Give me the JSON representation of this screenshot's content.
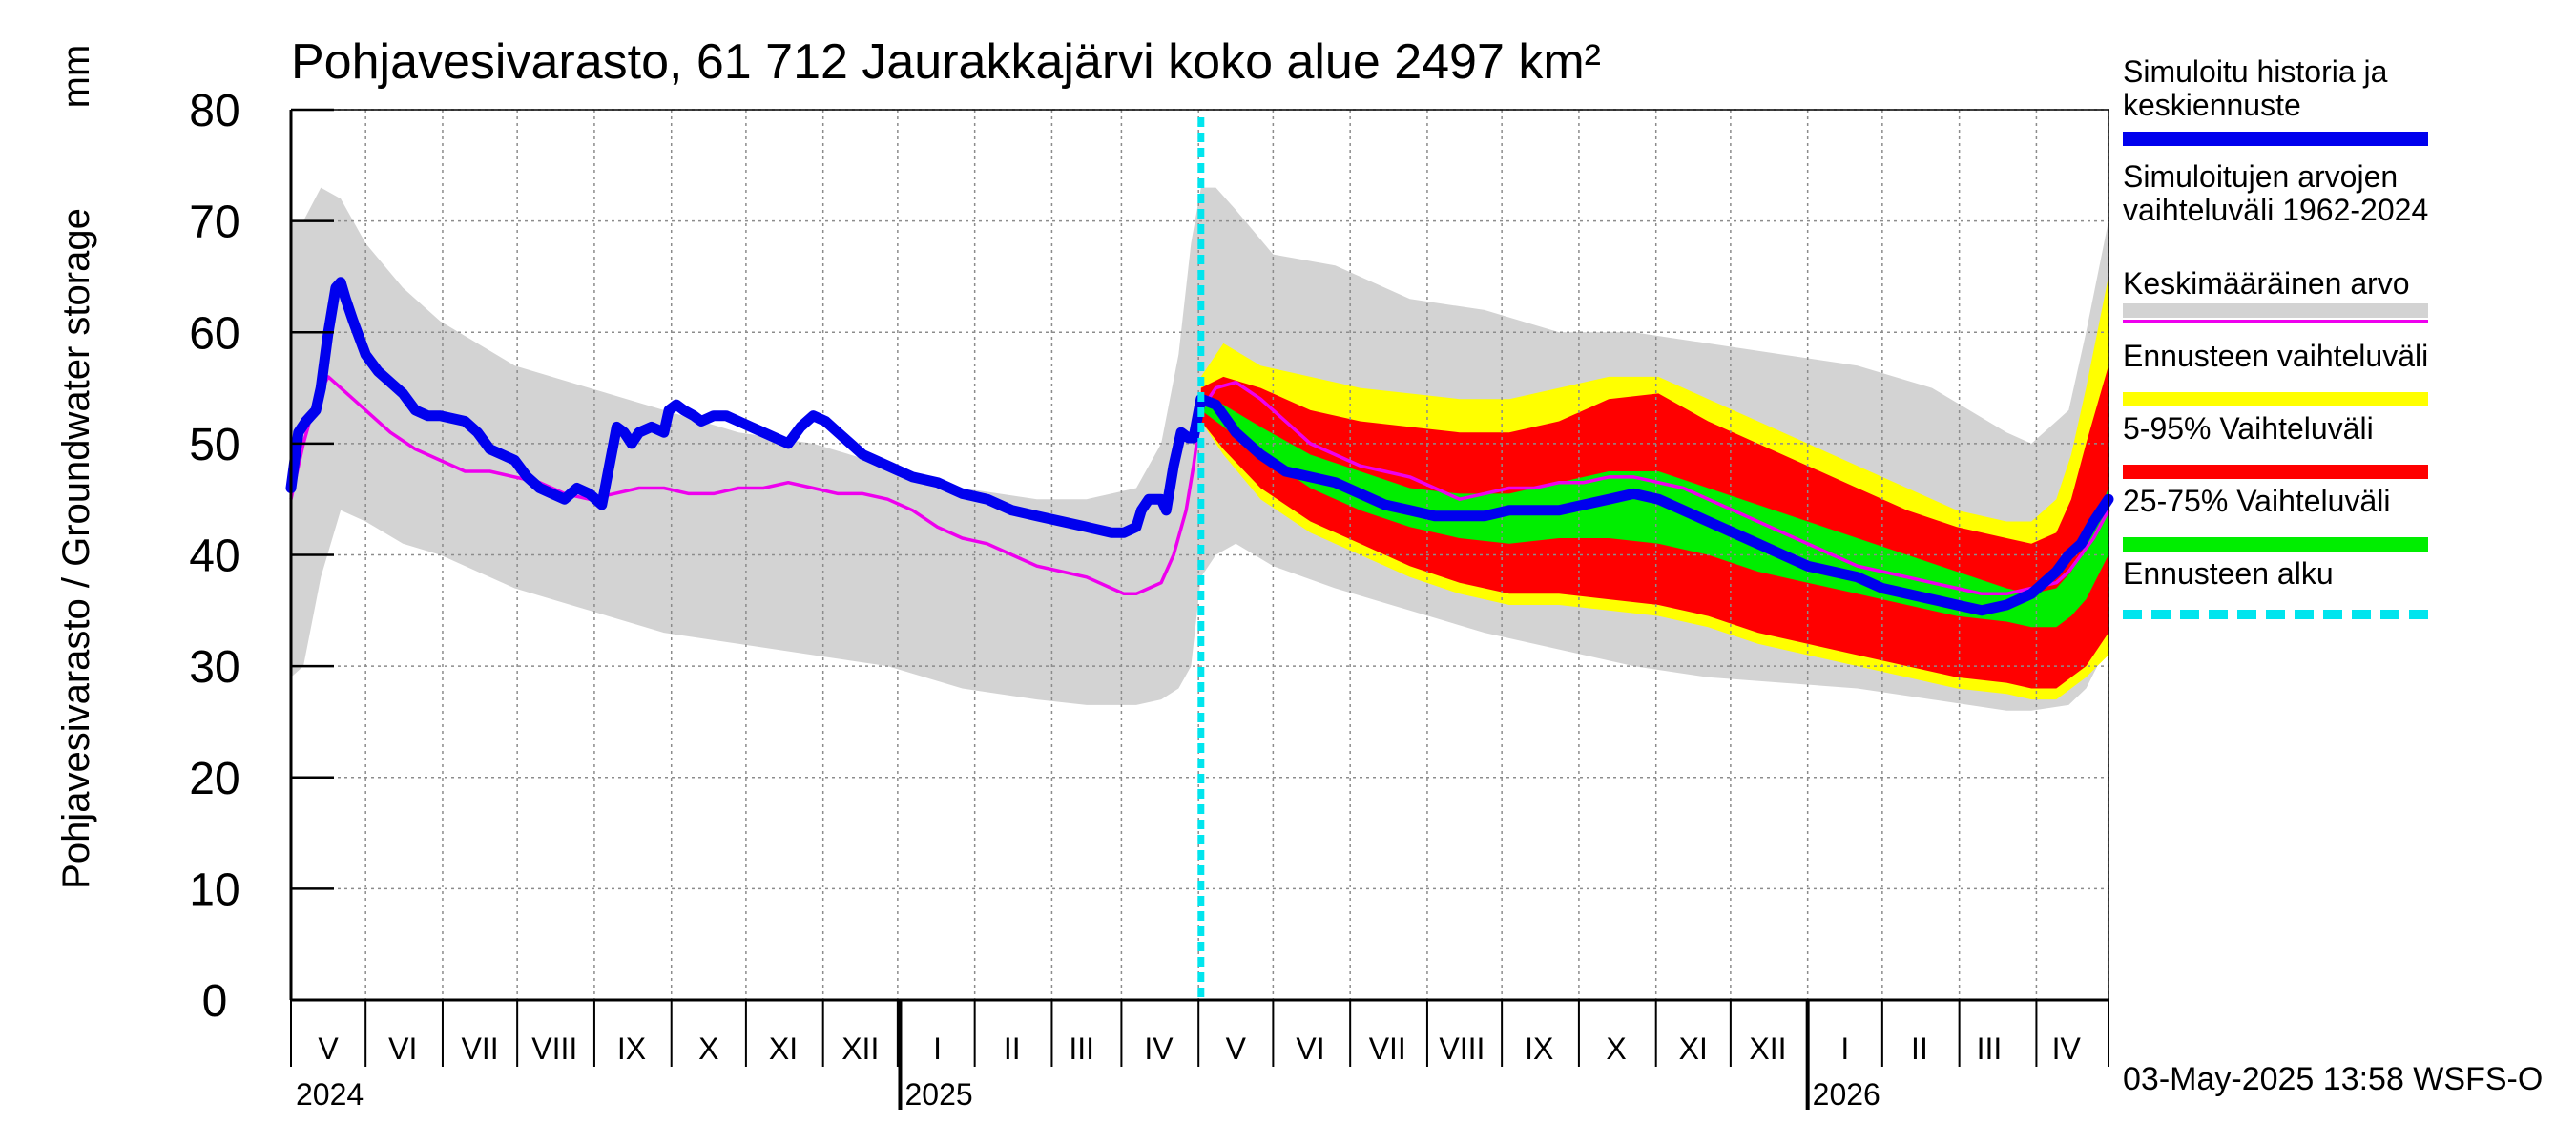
{
  "colors": {
    "history": "#0000ee",
    "history_range": "#d3d3d3",
    "mean": "#ee00ee",
    "forecast_range": "#ffff00",
    "p5_95": "#ff0000",
    "p25_75": "#00ee00",
    "forecast_start": "#00e5ee",
    "grid": "#8c8c8c"
  },
  "legend": [
    {
      "label": "Simuloitu historia ja\nkeskiennuste",
      "swatch": "history"
    },
    {
      "label": "Simuloitujen arvojen\nvaihteluväli 1962-2024",
      "swatch": "history_range"
    },
    {
      "label": "Keskimääräinen arvo",
      "swatch": "mean"
    },
    {
      "label": "Ennusteen vaihteluväli",
      "swatch": "forecast_range"
    },
    {
      "label": "5-95% Vaihteluväli",
      "swatch": "p5_95"
    },
    {
      "label": "25-75% Vaihteluväli",
      "swatch": "p25_75"
    },
    {
      "label": "Ennusteen alku",
      "swatch": "forecast_start"
    }
  ],
  "footer": {
    "timestamp": "03-May-2025 13:58 WSFS-O"
  },
  "chart_data": {
    "type": "line",
    "title": "Pohjavesivarasto, 61 712 Jaurakkajärvi koko alue 2497 km²",
    "ylabel": "Pohjavesivarasto / Groundwater storage",
    "yunit": "mm",
    "ylim": [
      0,
      80
    ],
    "yticks": [
      0,
      10,
      20,
      30,
      40,
      50,
      60,
      70,
      80
    ],
    "xlim_days": [
      0,
      731
    ],
    "month_boundaries_days": [
      0,
      30,
      61,
      91,
      122,
      153,
      183,
      214,
      244,
      275,
      306,
      334,
      365,
      395,
      426,
      457,
      487,
      518,
      549,
      579,
      610,
      640,
      671,
      702,
      731
    ],
    "year_boundaries_days": [
      245,
      610
    ],
    "month_labels": [
      {
        "label": "V",
        "day": 15
      },
      {
        "label": "VI",
        "day": 45
      },
      {
        "label": "VII",
        "day": 76
      },
      {
        "label": "VIII",
        "day": 106
      },
      {
        "label": "IX",
        "day": 137
      },
      {
        "label": "X",
        "day": 168
      },
      {
        "label": "XI",
        "day": 198
      },
      {
        "label": "XII",
        "day": 229
      },
      {
        "label": "I",
        "day": 260
      },
      {
        "label": "II",
        "day": 290
      },
      {
        "label": "III",
        "day": 318
      },
      {
        "label": "IV",
        "day": 349
      },
      {
        "label": "V",
        "day": 380
      },
      {
        "label": "VI",
        "day": 410
      },
      {
        "label": "VII",
        "day": 441
      },
      {
        "label": "VIII",
        "day": 471
      },
      {
        "label": "IX",
        "day": 502
      },
      {
        "label": "X",
        "day": 533
      },
      {
        "label": "XI",
        "day": 564
      },
      {
        "label": "XII",
        "day": 594
      },
      {
        "label": "I",
        "day": 625
      },
      {
        "label": "II",
        "day": 655
      },
      {
        "label": "III",
        "day": 683
      },
      {
        "label": "IV",
        "day": 714
      }
    ],
    "year_labels": [
      {
        "label": "2024",
        "day": 0
      },
      {
        "label": "2025",
        "day": 245
      },
      {
        "label": "2026",
        "day": 610
      }
    ],
    "forecast_start_day": 366,
    "series": [
      {
        "name": "Simuloitujen arvojen vaihteluväli 1962-2024",
        "kind": "band",
        "x": [
          0,
          5,
          12,
          20,
          30,
          45,
          60,
          90,
          120,
          150,
          180,
          210,
          240,
          270,
          300,
          320,
          340,
          350,
          357,
          362,
          366,
          372,
          380,
          395,
          420,
          450,
          480,
          510,
          540,
          570,
          600,
          630,
          660,
          690,
          700,
          715,
          722,
          731
        ],
        "lower": [
          29,
          30,
          38,
          44,
          43,
          41,
          40,
          37,
          35,
          33,
          32,
          31,
          30,
          28,
          27,
          26.5,
          26.5,
          27,
          28,
          30,
          38,
          40,
          41,
          39,
          37,
          35,
          33,
          31.5,
          30,
          29,
          28.5,
          28,
          27,
          26,
          26,
          26.5,
          28,
          32
        ],
        "upper": [
          70,
          70,
          73,
          72,
          68,
          64,
          61,
          57,
          55,
          53,
          51,
          50,
          48,
          46,
          45,
          45,
          46,
          50,
          58,
          68,
          73,
          73,
          71,
          67,
          66,
          63,
          62,
          60,
          60,
          59,
          58,
          57,
          55,
          51,
          50,
          53,
          60,
          70
        ]
      },
      {
        "name": "Ennusteen vaihteluväli",
        "kind": "band",
        "x": [
          366,
          375,
          390,
          410,
          430,
          450,
          470,
          490,
          510,
          530,
          550,
          570,
          590,
          610,
          630,
          650,
          670,
          690,
          700,
          710,
          716,
          722,
          731
        ],
        "lower": [
          52,
          49,
          45,
          42,
          40,
          38,
          36.5,
          35.5,
          35.5,
          35,
          34.5,
          33.5,
          32,
          31,
          30,
          29,
          28,
          27.5,
          27,
          27,
          28,
          29,
          31
        ],
        "upper": [
          56,
          59,
          57,
          56,
          55,
          54.5,
          54,
          54,
          55,
          56,
          56,
          54,
          52,
          50,
          48,
          46,
          44,
          43,
          43,
          45,
          49,
          55,
          65
        ]
      },
      {
        "name": "5-95% Vaihteluväli",
        "kind": "band",
        "x": [
          366,
          375,
          390,
          410,
          430,
          450,
          470,
          490,
          510,
          530,
          550,
          570,
          590,
          610,
          630,
          650,
          670,
          690,
          700,
          710,
          716,
          722,
          731
        ],
        "lower": [
          52,
          49.5,
          46,
          43,
          41,
          39,
          37.5,
          36.5,
          36.5,
          36,
          35.5,
          34.5,
          33,
          32,
          31,
          30,
          29,
          28.5,
          28,
          28,
          29,
          30,
          33
        ],
        "upper": [
          55,
          56,
          55,
          53,
          52,
          51.5,
          51,
          51,
          52,
          54,
          54.5,
          52,
          50,
          48,
          46,
          44,
          42.5,
          41.5,
          41,
          42,
          45,
          50,
          57
        ]
      },
      {
        "name": "25-75% Vaihteluväli",
        "kind": "band",
        "x": [
          366,
          375,
          390,
          410,
          430,
          450,
          470,
          490,
          510,
          530,
          550,
          570,
          590,
          610,
          630,
          650,
          670,
          690,
          700,
          710,
          716,
          722,
          731
        ],
        "lower": [
          53,
          51.5,
          49,
          46,
          44,
          42.5,
          41.5,
          41,
          41.5,
          41.5,
          41,
          40,
          38.5,
          37.5,
          36.5,
          35.5,
          34.5,
          34,
          33.5,
          33.5,
          34.5,
          36,
          40
        ],
        "upper": [
          54.5,
          53.5,
          51.5,
          49,
          47.5,
          46,
          45.5,
          45.5,
          46.5,
          47.5,
          47.5,
          46,
          44.5,
          43,
          41.5,
          40,
          38.5,
          37,
          36.5,
          37,
          38.5,
          41,
          46
        ]
      },
      {
        "name": "Keskimääräinen arvo",
        "kind": "line",
        "x": [
          0,
          5,
          10,
          15,
          20,
          30,
          40,
          50,
          60,
          70,
          80,
          90,
          100,
          110,
          120,
          130,
          140,
          150,
          160,
          170,
          180,
          190,
          200,
          210,
          220,
          230,
          240,
          250,
          260,
          270,
          280,
          290,
          300,
          310,
          320,
          330,
          335,
          340,
          345,
          350,
          355,
          360,
          363,
          366,
          372,
          380,
          390,
          400,
          410,
          420,
          430,
          440,
          450,
          460,
          470,
          480,
          490,
          500,
          510,
          520,
          530,
          540,
          550,
          560,
          570,
          580,
          590,
          600,
          610,
          620,
          630,
          640,
          650,
          660,
          670,
          680,
          690,
          700,
          710,
          715,
          720,
          725,
          731
        ],
        "y": [
          45,
          50,
          54,
          56,
          55,
          53,
          51,
          49.5,
          48.5,
          47.5,
          47.5,
          47,
          46.5,
          45.5,
          45,
          45.5,
          46,
          46,
          45.5,
          45.5,
          46,
          46,
          46.5,
          46,
          45.5,
          45.5,
          45,
          44,
          42.5,
          41.5,
          41,
          40,
          39,
          38.5,
          38,
          37,
          36.5,
          36.5,
          37,
          37.5,
          40,
          44,
          48,
          53,
          55,
          55.5,
          54,
          52,
          50,
          49,
          48,
          47.5,
          47,
          46,
          45,
          45.5,
          46,
          46,
          46.5,
          46.5,
          47,
          47,
          46.5,
          46,
          45,
          44,
          43,
          42,
          41,
          40,
          39,
          38.5,
          38,
          37.5,
          37,
          36.5,
          36.5,
          37,
          37.5,
          38.5,
          40,
          41.5,
          44
        ]
      },
      {
        "name": "Simuloitu historia ja keskiennuste",
        "kind": "line",
        "x": [
          0,
          3,
          6,
          10,
          12,
          15,
          18,
          20,
          22,
          25,
          30,
          35,
          40,
          45,
          50,
          55,
          60,
          70,
          75,
          80,
          85,
          90,
          95,
          100,
          105,
          110,
          115,
          120,
          125,
          128,
          131,
          134,
          137,
          140,
          145,
          150,
          152,
          155,
          158,
          162,
          165,
          170,
          175,
          180,
          185,
          190,
          200,
          205,
          210,
          215,
          220,
          225,
          230,
          240,
          250,
          260,
          270,
          280,
          290,
          300,
          310,
          320,
          330,
          335,
          340,
          342,
          345,
          350,
          352,
          355,
          358,
          361,
          363,
          366,
          372,
          380,
          390,
          400,
          410,
          420,
          430,
          440,
          450,
          460,
          470,
          480,
          490,
          500,
          510,
          520,
          530,
          540,
          550,
          560,
          570,
          580,
          590,
          600,
          610,
          620,
          630,
          640,
          650,
          660,
          670,
          680,
          690,
          700,
          710,
          715,
          720,
          725,
          731
        ],
        "y": [
          46,
          51,
          52,
          53,
          55,
          60,
          64,
          64.5,
          63,
          61,
          58,
          56.5,
          55.5,
          54.5,
          53,
          52.5,
          52.5,
          52,
          51,
          49.5,
          49,
          48.5,
          47,
          46,
          45.5,
          45,
          46,
          45.5,
          44.5,
          48,
          51.5,
          51,
          50,
          51,
          51.5,
          51,
          53,
          53.5,
          53,
          52.5,
          52,
          52.5,
          52.5,
          52,
          51.5,
          51,
          50,
          51.5,
          52.5,
          52,
          51,
          50,
          49,
          48,
          47,
          46.5,
          45.5,
          45,
          44,
          43.5,
          43,
          42.5,
          42,
          42,
          42.5,
          44,
          45,
          45,
          44,
          48,
          51,
          50.5,
          50.5,
          54,
          53.5,
          51,
          49,
          47.5,
          47,
          46.5,
          45.5,
          44.5,
          44,
          43.5,
          43.5,
          43.5,
          44,
          44,
          44,
          44.5,
          45,
          45.5,
          45,
          44,
          43,
          42,
          41,
          40,
          39,
          38.5,
          38,
          37,
          36.5,
          36,
          35.5,
          35,
          35.5,
          36.5,
          38.5,
          40,
          41,
          43,
          45
        ]
      }
    ]
  }
}
